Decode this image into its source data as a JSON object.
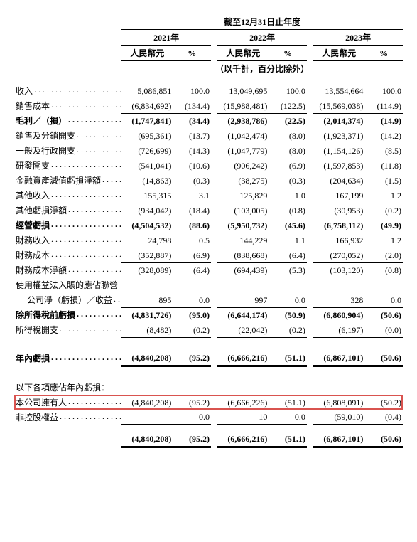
{
  "header": {
    "period_title": "截至12月31日止年度",
    "years": [
      "2021年",
      "2022年",
      "2023年"
    ],
    "currency_label": "人民幣元",
    "pct_label": "%",
    "unit_note": "（以千計，百分比除外）"
  },
  "rows": [
    {
      "key": "revenue",
      "label": "收入",
      "bold": false,
      "v": [
        "5,086,851",
        "100.0",
        "13,049,695",
        "100.0",
        "13,554,664",
        "100.0"
      ]
    },
    {
      "key": "cogs",
      "label": "銷售成本",
      "bold": false,
      "underline": true,
      "v": [
        "(6,834,692)",
        "(134.4)",
        "(15,988,481)",
        "(122.5)",
        "(15,569,038)",
        "(114.9)"
      ]
    },
    {
      "key": "gross",
      "label": "毛利／（損）",
      "bold": true,
      "topline": true,
      "v": [
        "(1,747,841)",
        "(34.4)",
        "(2,938,786)",
        "(22.5)",
        "(2,014,374)",
        "(14.9)"
      ]
    },
    {
      "key": "selling",
      "label": "銷售及分銷開支",
      "bold": false,
      "v": [
        "(695,361)",
        "(13.7)",
        "(1,042,474)",
        "(8.0)",
        "(1,923,371)",
        "(14.2)"
      ]
    },
    {
      "key": "admin",
      "label": "一般及行政開支",
      "bold": false,
      "v": [
        "(726,699)",
        "(14.3)",
        "(1,047,779)",
        "(8.0)",
        "(1,154,126)",
        "(8.5)"
      ]
    },
    {
      "key": "rnd",
      "label": "研發開支",
      "bold": false,
      "v": [
        "(541,041)",
        "(10.6)",
        "(906,242)",
        "(6.9)",
        "(1,597,853)",
        "(11.8)"
      ]
    },
    {
      "key": "fin_impair",
      "label": "金融資產減值虧損淨額",
      "bold": false,
      "v": [
        "(14,863)",
        "(0.3)",
        "(38,275)",
        "(0.3)",
        "(204,634)",
        "(1.5)"
      ]
    },
    {
      "key": "other_inc",
      "label": "其他收入",
      "bold": false,
      "v": [
        "155,315",
        "3.1",
        "125,829",
        "1.0",
        "167,199",
        "1.2"
      ]
    },
    {
      "key": "other_loss",
      "label": "其他虧損淨額",
      "bold": false,
      "underline": true,
      "v": [
        "(934,042)",
        "(18.4)",
        "(103,005)",
        "(0.8)",
        "(30,953)",
        "(0.2)"
      ]
    },
    {
      "key": "op_loss",
      "label": "經營虧損",
      "bold": true,
      "topline": true,
      "v": [
        "(4,504,532)",
        "(88.6)",
        "(5,950,732)",
        "(45.6)",
        "(6,758,112)",
        "(49.9)"
      ]
    },
    {
      "key": "fin_inc",
      "label": "財務收入",
      "bold": false,
      "v": [
        "24,798",
        "0.5",
        "144,229",
        "1.1",
        "166,932",
        "1.2"
      ]
    },
    {
      "key": "fin_cost",
      "label": "財務成本",
      "bold": false,
      "underline": true,
      "v": [
        "(352,887)",
        "(6.9)",
        "(838,668)",
        "(6.4)",
        "(270,052)",
        "(2.0)"
      ]
    },
    {
      "key": "fin_net",
      "label": "財務成本淨額",
      "bold": false,
      "topline": true,
      "v": [
        "(328,089)",
        "(6.4)",
        "(694,439)",
        "(5.3)",
        "(103,120)",
        "(0.8)"
      ]
    },
    {
      "key": "equity_hdr",
      "label": "使用權益法入賬的應佔聯營",
      "bold": false,
      "nodots": true,
      "v": [
        "",
        "",
        "",
        "",
        "",
        ""
      ]
    },
    {
      "key": "equity",
      "label": "公司淨（虧損）／收益",
      "bold": false,
      "indent": true,
      "underline": true,
      "v": [
        "895",
        "0.0",
        "997",
        "0.0",
        "328",
        "0.0"
      ]
    },
    {
      "key": "pbt",
      "label": "除所得稅前虧損",
      "bold": true,
      "topline": true,
      "v": [
        "(4,831,726)",
        "(95.0)",
        "(6,644,174)",
        "(50.9)",
        "(6,860,904)",
        "(50.6)"
      ]
    },
    {
      "key": "tax",
      "label": "所得稅開支",
      "bold": false,
      "underline": true,
      "v": [
        "(8,482)",
        "(0.2)",
        "(22,042)",
        "(0.2)",
        "(6,197)",
        "(0.0)"
      ]
    }
  ],
  "year_loss": {
    "label": "年內虧損",
    "bold": true,
    "dbl": true,
    "v": [
      "(4,840,208)",
      "(95.2)",
      "(6,666,216)",
      "(51.1)",
      "(6,867,101)",
      "(50.6)"
    ]
  },
  "attrib_header": "以下各項應佔年內虧損：",
  "attrib_rows": [
    {
      "key": "owners",
      "label": "本公司擁有人",
      "bold": false,
      "highlight": true,
      "v": [
        "(4,840,208)",
        "(95.2)",
        "(6,666,226)",
        "(51.1)",
        "(6,808,091)",
        "(50.2)"
      ]
    },
    {
      "key": "nci",
      "label": "非控股權益",
      "bold": false,
      "underline": true,
      "v": [
        "–",
        "0.0",
        "10",
        "0.0",
        "(59,010)",
        "(0.4)"
      ]
    }
  ],
  "attrib_total": {
    "label": "",
    "bold": true,
    "dbl": true,
    "v": [
      "(4,840,208)",
      "(95.2)",
      "(6,666,216)",
      "(51.1)",
      "(6,867,101)",
      "(50.6)"
    ]
  },
  "style": {
    "highlight_border_color": "#d9534f",
    "background_color": "#ffffff",
    "text_color": "#000000",
    "font_family": "Times New Roman / SimSun",
    "base_fontsize_pt": 9
  }
}
